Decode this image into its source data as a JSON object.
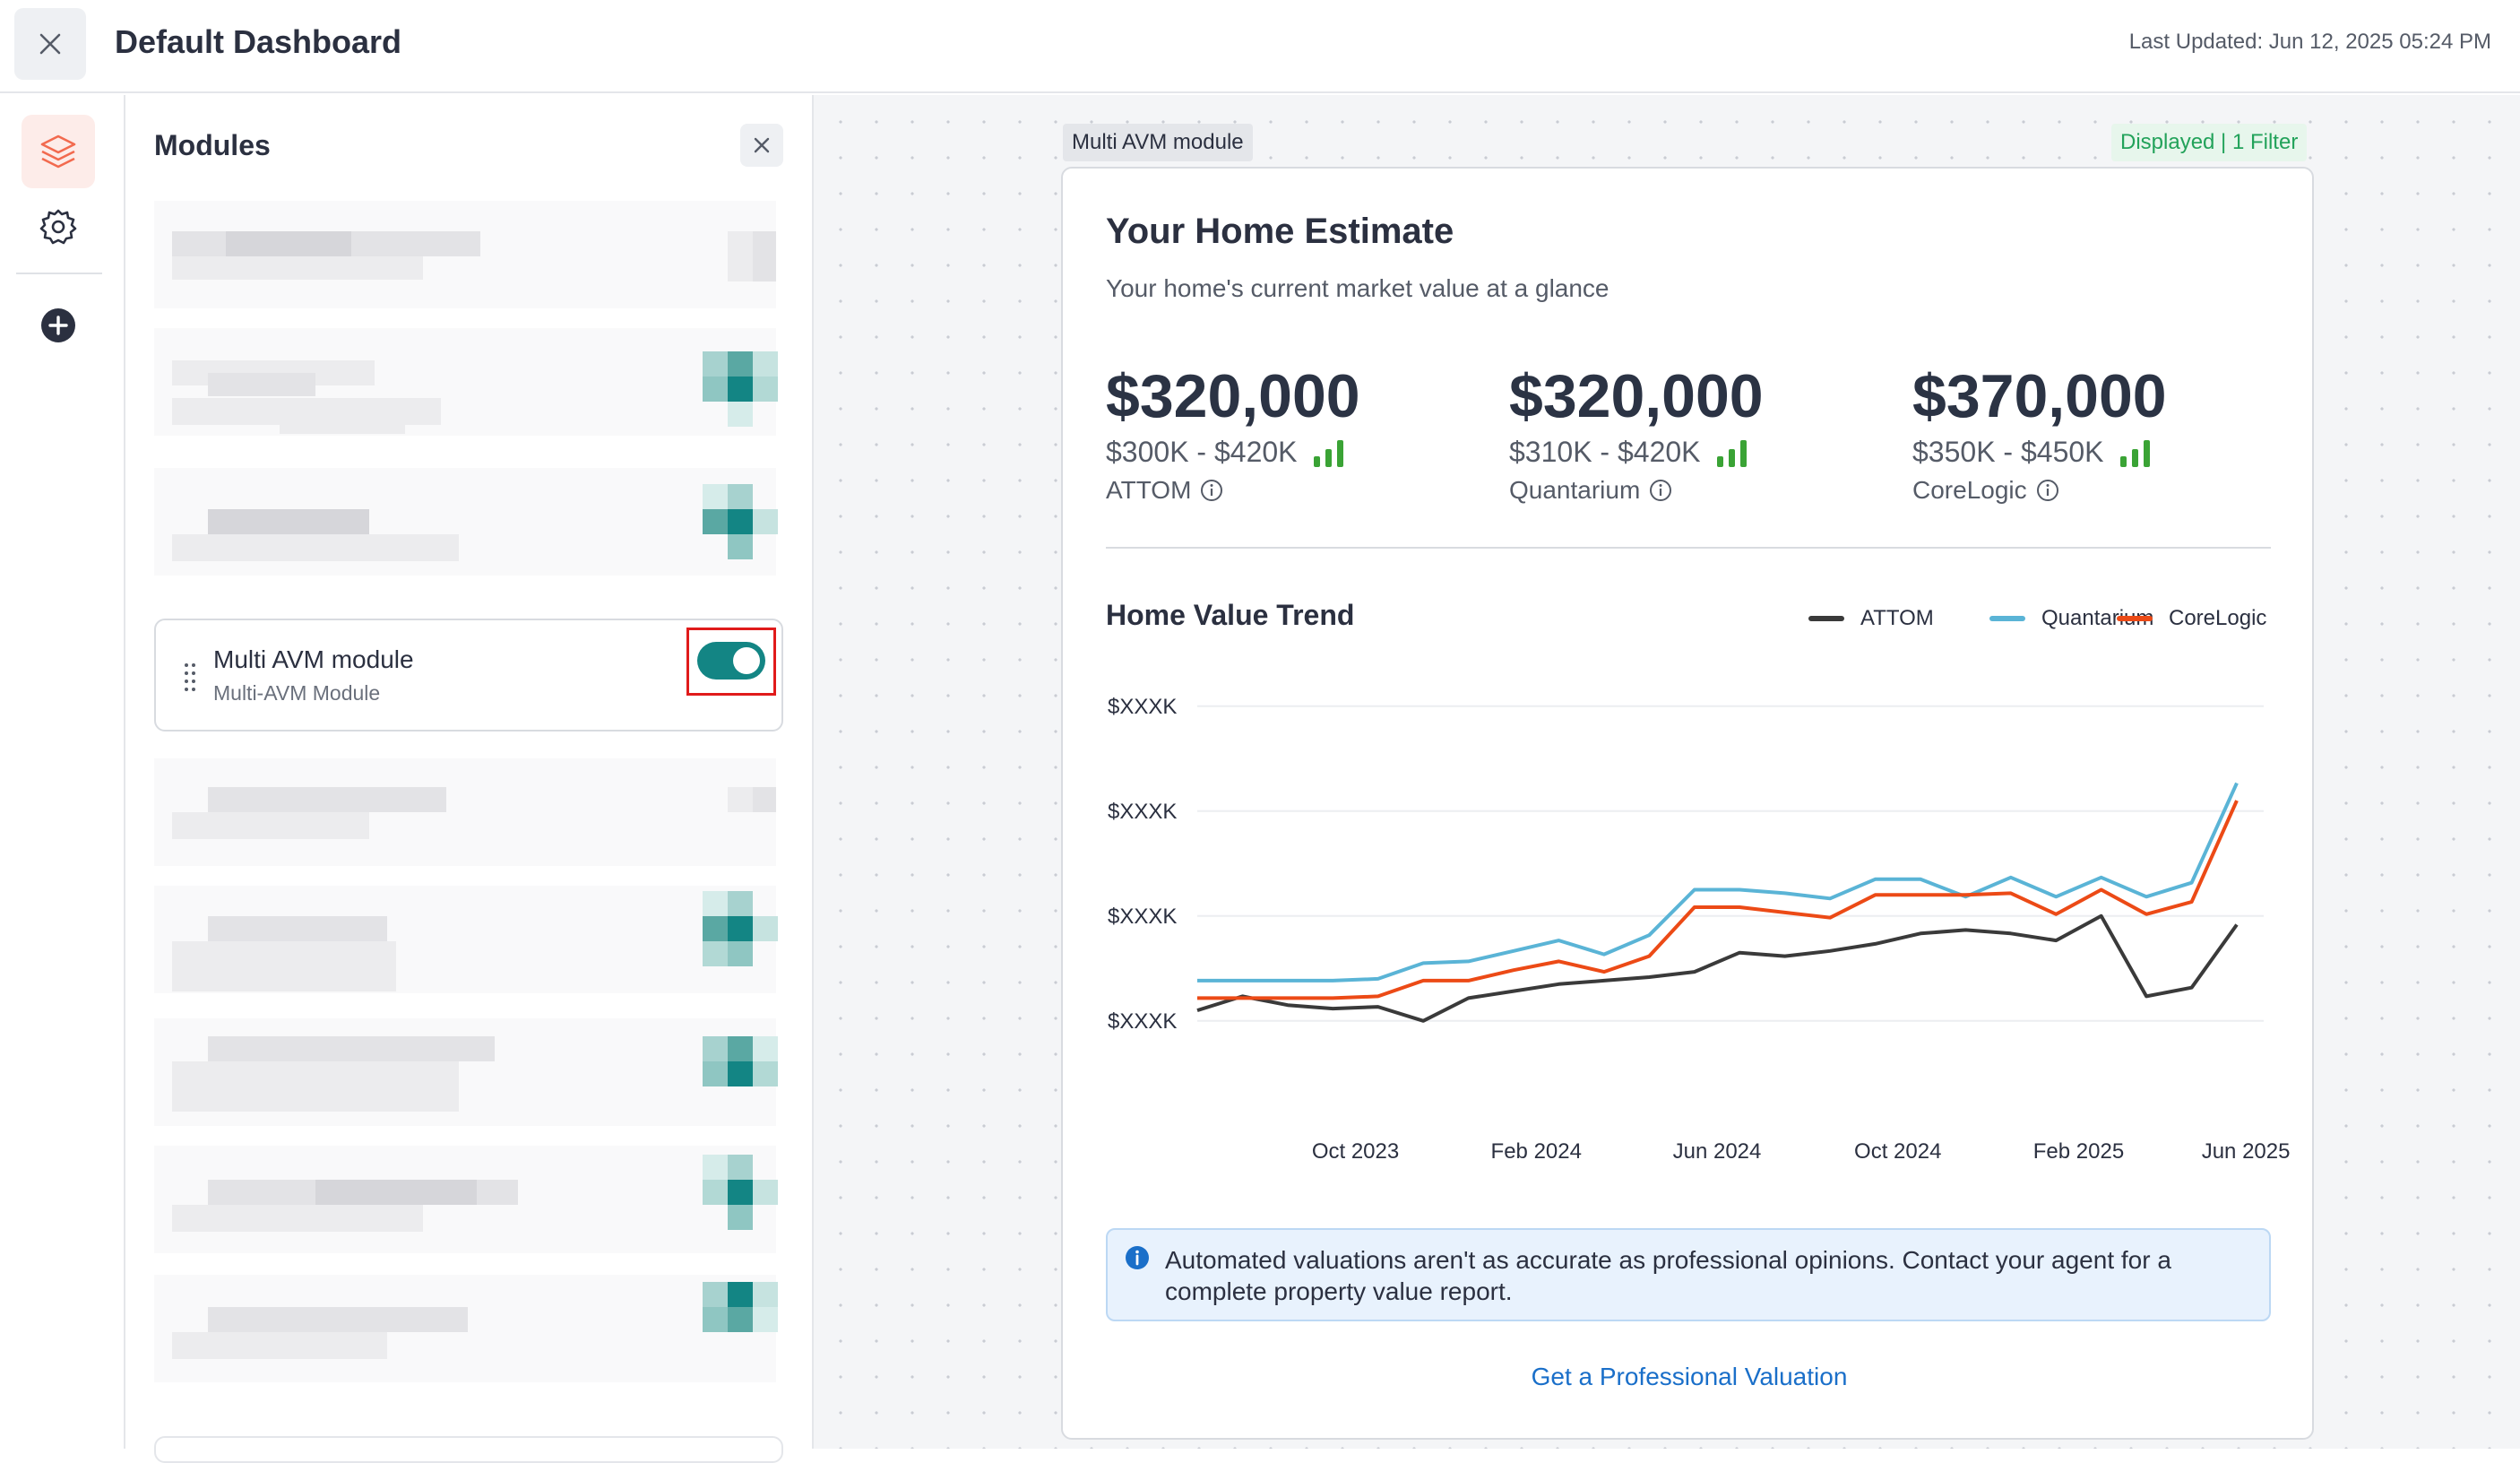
{
  "header": {
    "title": "Default Dashboard",
    "last_updated": "Last Updated: Jun 12, 2025 05:24 PM",
    "close_icon": "close-icon"
  },
  "rail": {
    "icons": [
      "layers-icon",
      "gear-icon",
      "plus-circle-icon"
    ],
    "accent": "#f26a4f"
  },
  "modules_panel": {
    "title": "Modules",
    "active_module": {
      "title": "Multi AVM module",
      "subtitle": "Multi-AVM Module",
      "toggle_on": true
    },
    "toggle_color": "#138584",
    "highlight_color": "#e01b1b"
  },
  "canvas": {
    "module_tag": "Multi AVM module",
    "filter_tag": "Displayed | 1 Filter"
  },
  "estimate_card": {
    "title": "Your Home Estimate",
    "subtitle": "Your home's current market value at a glance",
    "estimates": [
      {
        "value": "$320,000",
        "range": "$300K - $420K",
        "source": "ATTOM"
      },
      {
        "value": "$320,000",
        "range": "$310K - $420K",
        "source": "Quantarium"
      },
      {
        "value": "$370,000",
        "range": "$350K - $450K",
        "source": "CoreLogic"
      }
    ],
    "trend_title": "Home Value Trend",
    "notice": "Automated valuations aren't as accurate as professional opinions. Contact your agent for a complete property value report.",
    "link": "Get a Professional Valuation"
  },
  "chart_data": {
    "type": "line",
    "title": "Home Value Trend",
    "y_tick_labels": [
      "$XXXK",
      "$XXXK",
      "$XXXK",
      "$XXXK"
    ],
    "x_tick_labels": [
      "Oct 2023",
      "Feb 2024",
      "Jun 2024",
      "Oct 2024",
      "Feb 2025",
      "Jun 2025"
    ],
    "legend_position": "top-right",
    "grid": true,
    "ylim": [
      0,
      4
    ],
    "series": [
      {
        "name": "ATTOM",
        "color": "#3a3a3a",
        "values": [
          0.42,
          0.58,
          0.48,
          0.44,
          0.46,
          0.3,
          0.56,
          0.64,
          0.72,
          0.76,
          0.8,
          0.86,
          1.08,
          1.04,
          1.1,
          1.18,
          1.3,
          1.34,
          1.3,
          1.22,
          1.5,
          0.58,
          0.68,
          1.4
        ]
      },
      {
        "name": "Quantarium",
        "color": "#5ab4d6",
        "values": [
          0.76,
          0.76,
          0.76,
          0.76,
          0.78,
          0.96,
          0.98,
          1.1,
          1.22,
          1.06,
          1.28,
          1.8,
          1.8,
          1.76,
          1.7,
          1.92,
          1.92,
          1.72,
          1.94,
          1.72,
          1.94,
          1.72,
          1.88,
          3.02
        ]
      },
      {
        "name": "CoreLogic",
        "color": "#ec4a16",
        "values": [
          0.56,
          0.56,
          0.56,
          0.56,
          0.58,
          0.76,
          0.76,
          0.88,
          0.98,
          0.86,
          1.04,
          1.6,
          1.6,
          1.54,
          1.48,
          1.74,
          1.74,
          1.74,
          1.76,
          1.52,
          1.8,
          1.52,
          1.66,
          2.82
        ]
      }
    ]
  }
}
